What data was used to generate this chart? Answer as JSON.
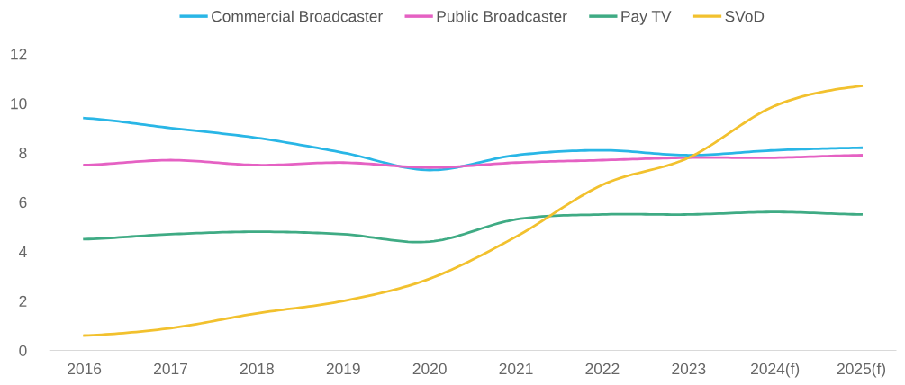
{
  "chart_data": {
    "type": "line",
    "categories": [
      "2016",
      "2017",
      "2018",
      "2019",
      "2020",
      "2021",
      "2022",
      "2023",
      "2024(f)",
      "2025(f)"
    ],
    "series": [
      {
        "name": "Commercial Broadcaster",
        "color": "#29b6e6",
        "values": [
          9.4,
          9.0,
          8.6,
          8.0,
          7.3,
          7.9,
          8.1,
          7.9,
          8.1,
          8.2
        ]
      },
      {
        "name": "Public Broadcaster",
        "color": "#e561c3",
        "values": [
          7.5,
          7.7,
          7.5,
          7.6,
          7.4,
          7.6,
          7.7,
          7.8,
          7.8,
          7.9
        ]
      },
      {
        "name": "Pay TV",
        "color": "#3fab84",
        "values": [
          4.5,
          4.7,
          4.8,
          4.7,
          4.4,
          5.3,
          5.5,
          5.5,
          5.6,
          5.5
        ]
      },
      {
        "name": "SVoD",
        "color": "#f2c12e",
        "values": [
          0.6,
          0.9,
          1.5,
          2.0,
          2.9,
          4.6,
          6.7,
          7.8,
          9.9,
          10.7
        ]
      }
    ],
    "ylim": [
      0,
      12
    ],
    "yticks": [
      0,
      2,
      4,
      6,
      8,
      10,
      12
    ],
    "legend": "top",
    "grid": false,
    "marker": "none",
    "line_style": "solid"
  }
}
